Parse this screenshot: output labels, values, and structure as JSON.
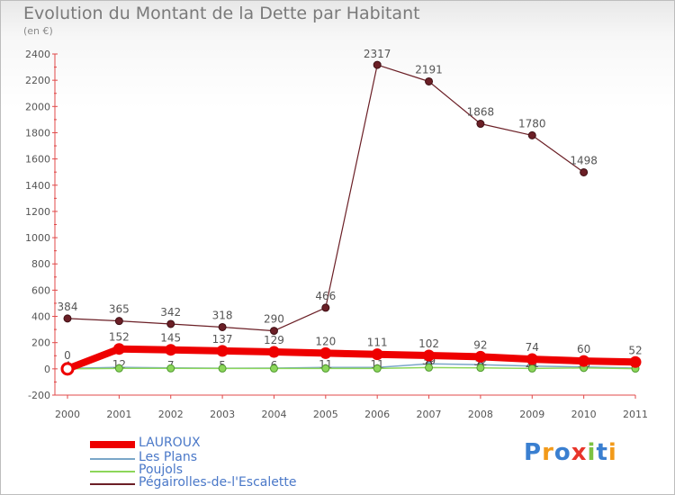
{
  "title": "Evolution du Montant de la Dette par Habitant",
  "subtitle": "(en €)",
  "logo": {
    "text": "Proxiti"
  },
  "chart_data": {
    "type": "line",
    "title": "Evolution du Montant de la Dette par Habitant",
    "ylabel": "(en €)",
    "xlabel": "",
    "ylim": [
      -200,
      2400
    ],
    "yticks": [
      -200,
      0,
      200,
      400,
      600,
      800,
      1000,
      1200,
      1400,
      1600,
      1800,
      2000,
      2200,
      2400
    ],
    "categories": [
      "2000",
      "2001",
      "2002",
      "2003",
      "2004",
      "2005",
      "2006",
      "2007",
      "2008",
      "2009",
      "2010",
      "2011"
    ],
    "grid": false,
    "legend_position": "bottom-left",
    "series": [
      {
        "name": "Pégairolles-de-l'Escalette",
        "color": "#6b1f26",
        "width": 1.2,
        "marker": 4,
        "values": [
          384,
          365,
          342,
          318,
          290,
          466,
          2317,
          2191,
          1868,
          1780,
          1498,
          null
        ],
        "labels": [
          "384",
          "365",
          "342",
          "318",
          "290",
          "466",
          "2317",
          "2191",
          "1868",
          "1780",
          "1498",
          null
        ]
      },
      {
        "name": "Les Plans",
        "color": "#7aa6c8",
        "width": 1.5,
        "marker": 3,
        "values": [
          4,
          12,
          7,
          5,
          6,
          11,
          11,
          39,
          32,
          21,
          15,
          6
        ],
        "labels": [
          "4",
          "12",
          "7",
          "5",
          "6",
          "11",
          "11",
          "39",
          "32",
          "21",
          "15",
          "6"
        ]
      },
      {
        "name": "Poujols",
        "color": "#8cd65a",
        "width": 1.5,
        "marker": 4,
        "values": [
          0,
          4,
          4,
          3,
          3,
          3,
          3,
          10,
          8,
          3,
          7,
          2
        ],
        "labels": [
          "0",
          null,
          null,
          null,
          null,
          null,
          null,
          null,
          null,
          null,
          null,
          null
        ]
      },
      {
        "name": "LAUROUX",
        "color": "#ee0000",
        "width": 8,
        "marker": 6,
        "values": [
          0,
          152,
          145,
          137,
          129,
          120,
          111,
          102,
          92,
          74,
          60,
          52
        ],
        "labels": [
          null,
          "152",
          "145",
          "137",
          "129",
          "120",
          "111",
          "102",
          "92",
          "74",
          "60",
          "52"
        ]
      }
    ],
    "legend": [
      "LAUROUX",
      "Les Plans",
      "Poujols",
      "Pégairolles-de-l'Escalette"
    ]
  }
}
